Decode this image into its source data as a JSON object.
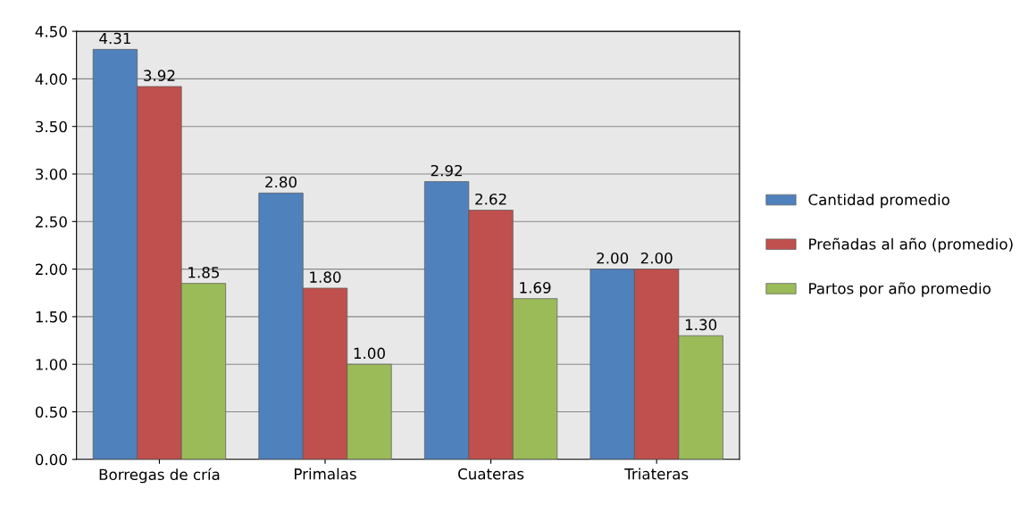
{
  "chart_data": {
    "type": "bar",
    "categories": [
      "Borregas de cría",
      "Primalas",
      "Cuateras",
      "Triateras"
    ],
    "series": [
      {
        "name": "Cantidad promedio",
        "color": "#4f81bd",
        "values": [
          4.31,
          2.8,
          2.92,
          2.0
        ],
        "value_labels": [
          "4.31",
          "2.80",
          "2.92",
          "2.00"
        ]
      },
      {
        "name": "Preñadas al año (promedio)",
        "color": "#c0504d",
        "values": [
          3.92,
          1.8,
          2.62,
          2.0
        ],
        "value_labels": [
          "3.92",
          "1.80",
          "2.62",
          "2.00"
        ]
      },
      {
        "name": "Partos por año promedio",
        "color": "#9bbb59",
        "values": [
          1.85,
          1.0,
          1.69,
          1.3
        ],
        "value_labels": [
          "1.85",
          "1.00",
          "1.69",
          "1.30"
        ]
      }
    ],
    "ylim": [
      0,
      4.5
    ],
    "yticks": [
      {
        "value": 0,
        "label": "0.00"
      },
      {
        "value": 0.5,
        "label": "0.50"
      },
      {
        "value": 1,
        "label": "1.00"
      },
      {
        "value": 1.5,
        "label": "1.50"
      },
      {
        "value": 2,
        "label": "2.00"
      },
      {
        "value": 2.5,
        "label": "2.50"
      },
      {
        "value": 3,
        "label": "3.00"
      },
      {
        "value": 3.5,
        "label": "3.50"
      },
      {
        "value": 4,
        "label": "4.00"
      },
      {
        "value": 4.5,
        "label": "4.50"
      }
    ],
    "grid": "y",
    "legend": "right"
  }
}
